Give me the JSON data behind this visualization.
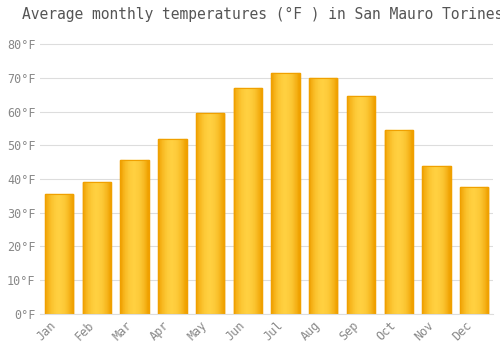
{
  "title": "Average monthly temperatures (°F ) in San Mauro Torinese",
  "months": [
    "Jan",
    "Feb",
    "Mar",
    "Apr",
    "May",
    "Jun",
    "Jul",
    "Aug",
    "Sep",
    "Oct",
    "Nov",
    "Dec"
  ],
  "values": [
    35.5,
    39.0,
    45.5,
    52.0,
    59.5,
    67.0,
    71.5,
    70.0,
    64.5,
    54.5,
    44.0,
    37.5
  ],
  "bar_color_center": "#FFD040",
  "bar_color_edge": "#F0A000",
  "background_color": "#FFFFFF",
  "plot_bg_color": "#FFFFFF",
  "grid_color": "#DDDDDD",
  "text_color": "#888888",
  "title_color": "#555555",
  "ylim": [
    0,
    85
  ],
  "yticks": [
    0,
    10,
    20,
    30,
    40,
    50,
    60,
    70,
    80
  ],
  "ytick_labels": [
    "0°F",
    "10°F",
    "20°F",
    "30°F",
    "40°F",
    "50°F",
    "60°F",
    "70°F",
    "80°F"
  ],
  "title_fontsize": 10.5,
  "tick_fontsize": 8.5,
  "bar_width": 0.75
}
